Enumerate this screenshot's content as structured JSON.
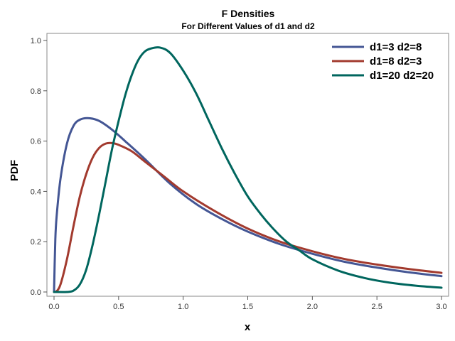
{
  "chart_data": {
    "type": "line",
    "title": "F Densities",
    "subtitle": "For Different Values of d1 and d2",
    "xlabel": "x",
    "ylabel": "PDF",
    "xlim": [
      0,
      3.0
    ],
    "ylim": [
      0,
      1.0
    ],
    "xticks": [
      "0.0",
      "0.5",
      "1.0",
      "1.5",
      "2.0",
      "2.5",
      "3.0"
    ],
    "yticks": [
      "0.0",
      "0.2",
      "0.4",
      "0.6",
      "0.8",
      "1.0"
    ],
    "grid": false,
    "legend_position": "top-right",
    "series": [
      {
        "name": "d1=3 d2=8",
        "color": "#445694",
        "x": [
          0.0,
          0.01,
          0.02,
          0.05,
          0.1,
          0.15,
          0.2,
          0.27,
          0.35,
          0.45,
          0.55,
          0.7,
          0.9,
          1.1,
          1.3,
          1.5,
          1.75,
          2.0,
          2.25,
          2.5,
          2.75,
          3.0
        ],
        "y": [
          0.0,
          0.21,
          0.3,
          0.45,
          0.59,
          0.66,
          0.685,
          0.691,
          0.68,
          0.645,
          0.6,
          0.53,
          0.43,
          0.35,
          0.29,
          0.24,
          0.19,
          0.152,
          0.12,
          0.097,
          0.078,
          0.063
        ]
      },
      {
        "name": "d1=8 d2=3",
        "color": "#a23a2e",
        "x": [
          0.0,
          0.02,
          0.05,
          0.1,
          0.15,
          0.2,
          0.25,
          0.3,
          0.35,
          0.4,
          0.45,
          0.5,
          0.6,
          0.7,
          0.85,
          1.0,
          1.25,
          1.5,
          1.75,
          2.0,
          2.25,
          2.5,
          2.75,
          3.0
        ],
        "y": [
          0.0,
          0.003,
          0.03,
          0.13,
          0.26,
          0.38,
          0.47,
          0.535,
          0.573,
          0.59,
          0.592,
          0.585,
          0.56,
          0.52,
          0.46,
          0.4,
          0.32,
          0.252,
          0.2,
          0.162,
          0.131,
          0.109,
          0.091,
          0.076
        ]
      },
      {
        "name": "d1=20 d2=20",
        "color": "#00665e",
        "x": [
          0.0,
          0.1,
          0.15,
          0.2,
          0.25,
          0.3,
          0.35,
          0.4,
          0.45,
          0.5,
          0.55,
          0.6,
          0.65,
          0.7,
          0.75,
          0.82,
          0.9,
          1.0,
          1.1,
          1.2,
          1.3,
          1.4,
          1.5,
          1.6,
          1.7,
          1.8,
          1.9,
          2.0,
          2.2,
          2.4,
          2.6,
          2.8,
          3.0
        ],
        "y": [
          0.0,
          0.0,
          0.005,
          0.03,
          0.09,
          0.19,
          0.31,
          0.44,
          0.57,
          0.68,
          0.78,
          0.86,
          0.92,
          0.955,
          0.968,
          0.972,
          0.95,
          0.88,
          0.79,
          0.68,
          0.57,
          0.47,
          0.38,
          0.31,
          0.25,
          0.2,
          0.165,
          0.13,
          0.085,
          0.056,
          0.037,
          0.025,
          0.017
        ]
      }
    ]
  }
}
